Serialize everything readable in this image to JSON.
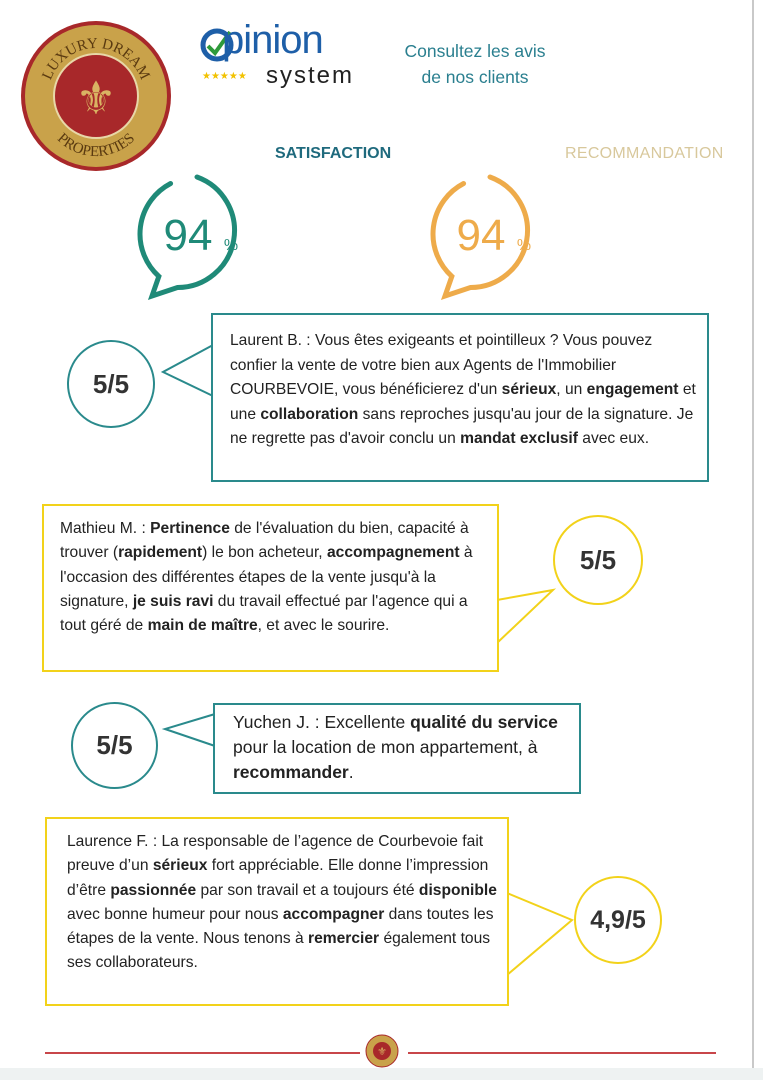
{
  "brand": {
    "logo_text_top": "LUXURY DREAM",
    "logo_text_bottom": "PROPERTIES",
    "opinion_logo_word": "pinion",
    "opinion_logo_sub": "system",
    "tagline_line1": "Consultez les avis",
    "tagline_line2": "de nos clients"
  },
  "gauges": [
    {
      "label": "SATISFACTION",
      "value": "94",
      "unit": "%",
      "percent": 94,
      "color": "#1f8a78"
    },
    {
      "label": "RECOMMANDATION",
      "value": "94",
      "unit": "%",
      "percent": 94,
      "color": "#eeab4a"
    }
  ],
  "reviews": [
    {
      "score": "5/5",
      "style": "teal",
      "segments": [
        {
          "text": "Laurent B. : Vous êtes exigeants et pointilleux ? Vous pouvez confier la vente de votre bien aux Agents de l'Immobilier COURBEVOIE, vous bénéficierez d'un ",
          "bold": false
        },
        {
          "text": "sérieux",
          "bold": true
        },
        {
          "text": ", un ",
          "bold": false
        },
        {
          "text": "engagement",
          "bold": true
        },
        {
          "text": " et une ",
          "bold": false
        },
        {
          "text": "collaboration",
          "bold": true
        },
        {
          "text": " sans reproches jusqu'au jour de la signature. Je ne regrette pas d'avoir conclu un ",
          "bold": false
        },
        {
          "text": "mandat exclusif",
          "bold": true
        },
        {
          "text": " avec eux.",
          "bold": false
        }
      ]
    },
    {
      "score": "5/5",
      "style": "yellow",
      "segments": [
        {
          "text": "Mathieu M. : ",
          "bold": false
        },
        {
          "text": "Pertinence",
          "bold": true
        },
        {
          "text": " de l'évaluation du bien, capacité à trouver (",
          "bold": false
        },
        {
          "text": "rapidement",
          "bold": true
        },
        {
          "text": ") le bon acheteur, ",
          "bold": false
        },
        {
          "text": "accompagnement",
          "bold": true
        },
        {
          "text": " à l'occasion des différentes étapes de la vente jusqu'à la signature, ",
          "bold": false
        },
        {
          "text": "je suis ravi",
          "bold": true
        },
        {
          "text": " du travail effectué par l'agence qui a tout géré de ",
          "bold": false
        },
        {
          "text": "main de maître",
          "bold": true
        },
        {
          "text": ", et avec le sourire.",
          "bold": false
        }
      ]
    },
    {
      "score": "5/5",
      "style": "teal",
      "segments": [
        {
          "text": "Yuchen J. : Excellente ",
          "bold": false
        },
        {
          "text": "qualité du service",
          "bold": true
        },
        {
          "text": " pour la location de mon appartement, à ",
          "bold": false
        },
        {
          "text": "recommander",
          "bold": true
        },
        {
          "text": ".",
          "bold": false
        }
      ]
    },
    {
      "score": "4,9/5",
      "style": "yellow",
      "segments": [
        {
          "text": "Laurence F. : La responsable de l’agence de Courbevoie fait preuve d’un ",
          "bold": false
        },
        {
          "text": "sérieux",
          "bold": true
        },
        {
          "text": " fort appréciable. Elle donne l’impression d’être ",
          "bold": false
        },
        {
          "text": "passionnée",
          "bold": true
        },
        {
          "text": " par son travail et a toujours été ",
          "bold": false
        },
        {
          "text": "disponible",
          "bold": true
        },
        {
          "text": " avec bonne humeur pour nous ",
          "bold": false
        },
        {
          "text": "accompagner",
          "bold": true
        },
        {
          "text": " dans toutes les étapes de la vente. Nous tenons à ",
          "bold": false
        },
        {
          "text": "remercier",
          "bold": true
        },
        {
          "text": " également tous ses collaborateurs.",
          "bold": false
        }
      ]
    }
  ],
  "colors": {
    "teal": "#2a8a8c",
    "yellow": "#f2d21a",
    "footer_line": "#c8464a",
    "logo_gold": "#c9a24a",
    "logo_red": "#a8282a"
  }
}
